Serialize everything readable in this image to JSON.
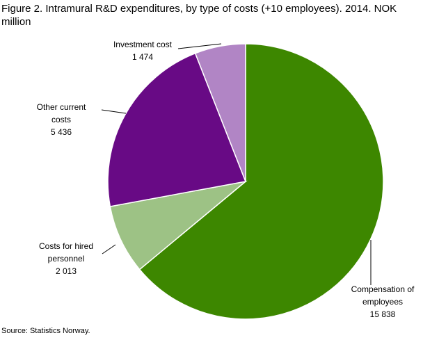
{
  "chart_data": {
    "type": "pie",
    "title": "Figure 2. Intramural R&D expenditures, by type of costs (+10 employees). 2014. NOK million",
    "categories": [
      "Compensation of employees",
      "Costs for hired personnel",
      "Other current costs",
      "Investment cost"
    ],
    "values": [
      15838,
      2013,
      5436,
      1474
    ],
    "value_labels": [
      "15 838",
      "2 013",
      "5 436",
      "1 474"
    ],
    "colors": [
      "#3d8700",
      "#9dc285",
      "#680a85",
      "#b185c5"
    ],
    "source": "Source: Statistics Norway."
  }
}
